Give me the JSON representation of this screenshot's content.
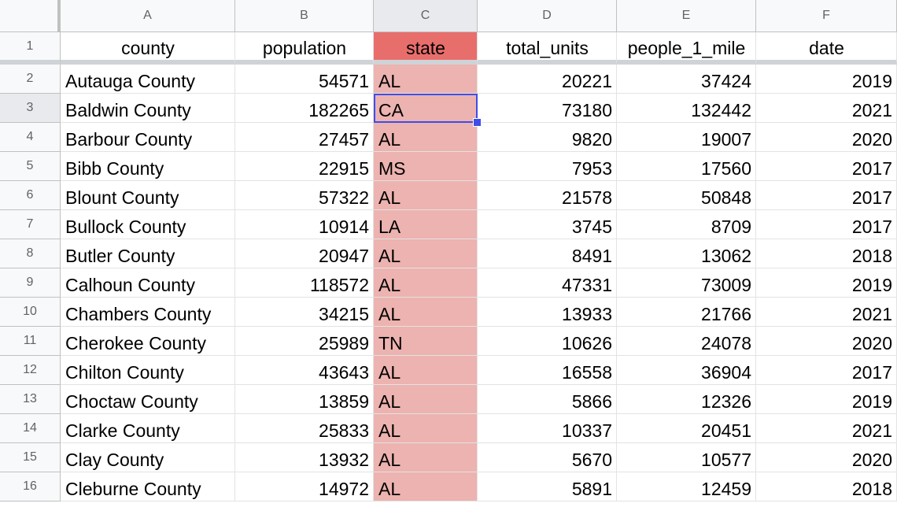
{
  "columns": [
    "A",
    "B",
    "C",
    "D",
    "E",
    "F"
  ],
  "headers": [
    "county",
    "population",
    "state",
    "total_units",
    "people_1_mile",
    "date"
  ],
  "colors": {
    "state_column_fill": "#ecb3b0",
    "state_header_fill": "#e86e6c",
    "selection": "#3d4ee8"
  },
  "active_cell": "C3",
  "rows": [
    {
      "num": "2",
      "county": "Autauga County",
      "population": "54571",
      "state": "AL",
      "total_units": "20221",
      "people_1_mile": "37424",
      "date": "2019"
    },
    {
      "num": "3",
      "county": "Baldwin County",
      "population": "182265",
      "state": "CA",
      "total_units": "73180",
      "people_1_mile": "132442",
      "date": "2021"
    },
    {
      "num": "4",
      "county": "Barbour County",
      "population": "27457",
      "state": "AL",
      "total_units": "9820",
      "people_1_mile": "19007",
      "date": "2020"
    },
    {
      "num": "5",
      "county": "Bibb County",
      "population": "22915",
      "state": "MS",
      "total_units": "7953",
      "people_1_mile": "17560",
      "date": "2017"
    },
    {
      "num": "6",
      "county": "Blount County",
      "population": "57322",
      "state": "AL",
      "total_units": "21578",
      "people_1_mile": "50848",
      "date": "2017"
    },
    {
      "num": "7",
      "county": "Bullock County",
      "population": "10914",
      "state": "LA",
      "total_units": "3745",
      "people_1_mile": "8709",
      "date": "2017"
    },
    {
      "num": "8",
      "county": "Butler County",
      "population": "20947",
      "state": "AL",
      "total_units": "8491",
      "people_1_mile": "13062",
      "date": "2018"
    },
    {
      "num": "9",
      "county": "Calhoun County",
      "population": "118572",
      "state": "AL",
      "total_units": "47331",
      "people_1_mile": "73009",
      "date": "2019"
    },
    {
      "num": "10",
      "county": "Chambers County",
      "population": "34215",
      "state": "AL",
      "total_units": "13933",
      "people_1_mile": "21766",
      "date": "2021"
    },
    {
      "num": "11",
      "county": "Cherokee County",
      "population": "25989",
      "state": "TN",
      "total_units": "10626",
      "people_1_mile": "24078",
      "date": "2020"
    },
    {
      "num": "12",
      "county": "Chilton County",
      "population": "43643",
      "state": "AL",
      "total_units": "16558",
      "people_1_mile": "36904",
      "date": "2017"
    },
    {
      "num": "13",
      "county": "Choctaw County",
      "population": "13859",
      "state": "AL",
      "total_units": "5866",
      "people_1_mile": "12326",
      "date": "2019"
    },
    {
      "num": "14",
      "county": "Clarke County",
      "population": "25833",
      "state": "AL",
      "total_units": "10337",
      "people_1_mile": "20451",
      "date": "2021"
    },
    {
      "num": "15",
      "county": "Clay County",
      "population": "13932",
      "state": "AL",
      "total_units": "5670",
      "people_1_mile": "10577",
      "date": "2020"
    },
    {
      "num": "16",
      "county": "Cleburne County",
      "population": "14972",
      "state": "AL",
      "total_units": "5891",
      "people_1_mile": "12459",
      "date": "2018"
    }
  ]
}
